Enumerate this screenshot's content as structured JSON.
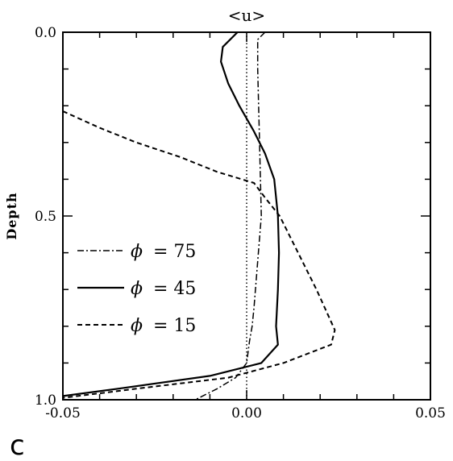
{
  "chart_data": {
    "type": "line",
    "title": "<u>",
    "ylabel": "Depth",
    "xlabel": "",
    "panel_label": "c",
    "xlim": [
      -0.05,
      0.05
    ],
    "ylim": [
      0.0,
      1.0
    ],
    "y_inverted": true,
    "x_ticks": [
      -0.05,
      0.0,
      0.05
    ],
    "x_tick_labels": [
      "-0.05",
      "0.00",
      "0.05"
    ],
    "y_ticks": [
      0.0,
      0.5,
      1.0
    ],
    "y_tick_labels": [
      "0.0",
      "0.5",
      "1.0"
    ],
    "grid": false,
    "legend_position": "center-left",
    "reference_line": {
      "x": 0.0,
      "style": "dotted"
    },
    "series": [
      {
        "name": "ϕ = 75",
        "style": "dashdot",
        "points": [
          [
            0.005,
            0.0
          ],
          [
            0.003,
            0.02
          ],
          [
            0.003,
            0.1
          ],
          [
            0.0035,
            0.3
          ],
          [
            0.004,
            0.5
          ],
          [
            0.002,
            0.75
          ],
          [
            0.0015,
            0.8
          ],
          [
            0.0008,
            0.84
          ],
          [
            0.0,
            0.9
          ],
          [
            -0.003,
            0.94
          ],
          [
            -0.008,
            0.97
          ],
          [
            -0.014,
            1.0
          ]
        ]
      },
      {
        "name": "ϕ = 45",
        "name_display": "= 45",
        "style": "solid",
        "points": [
          [
            -0.0025,
            0.0
          ],
          [
            -0.0065,
            0.04
          ],
          [
            -0.007,
            0.08
          ],
          [
            -0.005,
            0.14
          ],
          [
            -0.002,
            0.2
          ],
          [
            0.002,
            0.27
          ],
          [
            0.005,
            0.33
          ],
          [
            0.0075,
            0.4
          ],
          [
            0.0085,
            0.5
          ],
          [
            0.0088,
            0.6
          ],
          [
            0.0085,
            0.7
          ],
          [
            0.008,
            0.8
          ],
          [
            0.0085,
            0.85
          ],
          [
            0.004,
            0.9
          ],
          [
            -0.01,
            0.935
          ],
          [
            -0.035,
            0.97
          ],
          [
            -0.05,
            0.99
          ]
        ]
      },
      {
        "name": "ϕ = 15",
        "name_display": "= 15",
        "style": "dashed",
        "points": [
          [
            -0.05,
            0.215
          ],
          [
            -0.04,
            0.26
          ],
          [
            -0.03,
            0.3
          ],
          [
            -0.018,
            0.34
          ],
          [
            -0.008,
            0.38
          ],
          [
            0.002,
            0.41
          ],
          [
            0.005,
            0.45
          ],
          [
            0.009,
            0.5
          ],
          [
            0.014,
            0.6
          ],
          [
            0.019,
            0.7
          ],
          [
            0.024,
            0.81
          ],
          [
            0.023,
            0.85
          ],
          [
            0.01,
            0.9
          ],
          [
            -0.005,
            0.94
          ],
          [
            -0.03,
            0.97
          ],
          [
            -0.05,
            0.995
          ]
        ]
      }
    ],
    "legend_entries": [
      {
        "symbol": "ϕ",
        "label": "= 75"
      },
      {
        "symbol": "ϕ",
        "label": "= 45"
      },
      {
        "symbol": "ϕ",
        "label": "= 15"
      }
    ]
  }
}
